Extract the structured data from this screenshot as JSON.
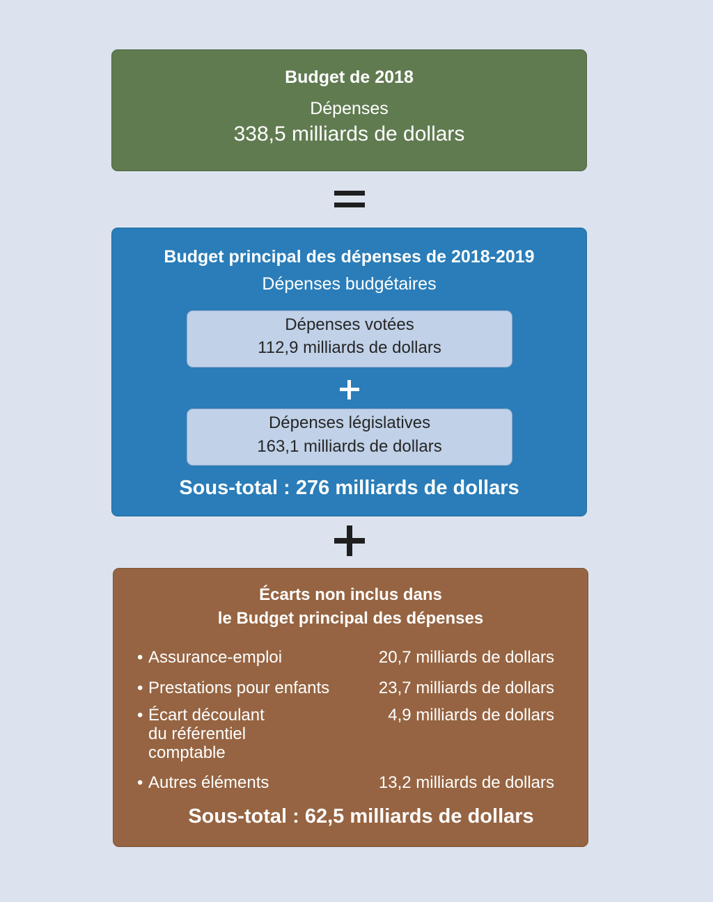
{
  "budget": {
    "title": "Budget de 2018",
    "subtitle": "Dépenses",
    "amount": "338,5 milliards de dollars"
  },
  "main_estimates": {
    "title": "Budget principal des dépenses de 2018-2019",
    "subtitle": "Dépenses budgétaires",
    "voted": {
      "label": "Dépenses votées",
      "amount": "112,9 milliards de dollars"
    },
    "statutory": {
      "label": "Dépenses législatives",
      "amount": "163,1 milliards de dollars"
    },
    "subtotal": "Sous-total : 276 milliards de dollars"
  },
  "gaps": {
    "title_line1": "Écarts non inclus dans",
    "title_line2": "le Budget principal des dépenses",
    "items": [
      {
        "label_lines": [
          "Assurance-emploi"
        ],
        "amount": "20,7 milliards de dollars"
      },
      {
        "label_lines": [
          "Prestations pour enfants"
        ],
        "amount": "23,7 milliards de dollars"
      },
      {
        "label_lines": [
          "Écart découlant",
          "du référentiel",
          "comptable"
        ],
        "amount": "4,9 milliards de dollars"
      },
      {
        "label_lines": [
          "Autres éléments"
        ],
        "amount": "13,2 milliards de dollars"
      }
    ],
    "subtotal": "Sous-total : 62,5 milliards de dollars"
  },
  "colors": {
    "background": "#dce3ef",
    "budget_box": "#617b51",
    "main_box": "#2a7db8",
    "inner_box": "#c0d1e8",
    "gaps_box": "#966442",
    "operator": "#1f1f1f"
  }
}
